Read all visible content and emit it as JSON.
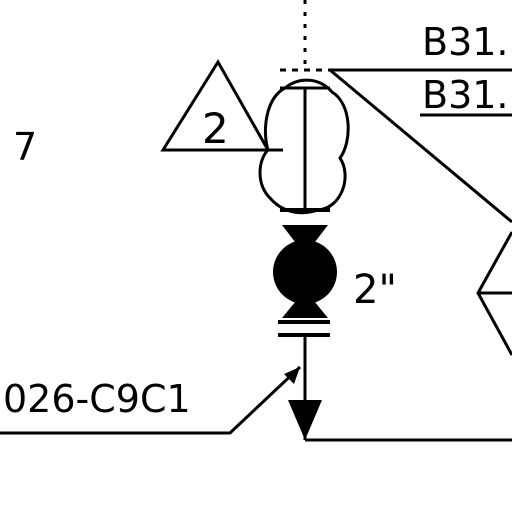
{
  "drawing": {
    "stroke_color": "#000000",
    "background_color": "#ffffff",
    "labels": {
      "left_number": "7",
      "triangle_number": "2",
      "pipe_size": "2\"",
      "line_tag": "026-C9C1",
      "ref_top": "B31.",
      "ref_bottom": "B31."
    },
    "icons": {
      "revision_triangle": "revision-triangle-icon",
      "revision_cloud": "revision-cloud-icon",
      "valve": "ball-valve-icon",
      "flow_arrow": "flow-arrow-icon"
    }
  }
}
